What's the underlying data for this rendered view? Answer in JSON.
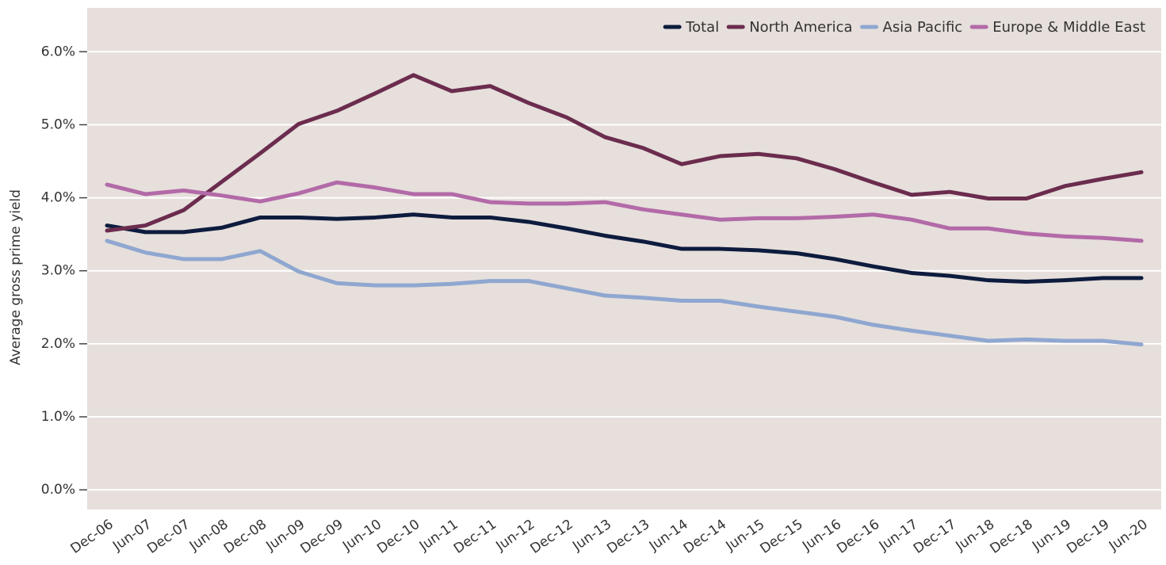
{
  "chart_data": {
    "type": "line",
    "y_label": "Average gross prime yield",
    "categories": [
      "Dec-06",
      "Jun-07",
      "Dec-07",
      "Jun-08",
      "Dec-08",
      "Jun-09",
      "Dec-09",
      "Jun-10",
      "Dec-10",
      "Jun-11",
      "Dec-11",
      "Jun-12",
      "Dec-12",
      "Jun-13",
      "Dec-13",
      "Jun-14",
      "Dec-14",
      "Jun-15",
      "Dec-15",
      "Jun-16",
      "Dec-16",
      "Jun-17",
      "Dec-17",
      "Jun-18",
      "Dec-18",
      "Jun-19",
      "Dec-19",
      "Jun-20"
    ],
    "series": [
      {
        "name": "Total",
        "color": "#0d1b3e",
        "values": [
          3.62,
          3.53,
          3.53,
          3.59,
          3.73,
          3.73,
          3.71,
          3.73,
          3.77,
          3.73,
          3.73,
          3.67,
          3.58,
          3.48,
          3.4,
          3.3,
          3.3,
          3.28,
          3.24,
          3.16,
          3.06,
          2.97,
          2.93,
          2.87,
          2.85,
          2.87,
          2.9,
          2.9
        ]
      },
      {
        "name": "North America",
        "color": "#6b2c4e",
        "values": [
          3.55,
          3.62,
          3.83,
          4.22,
          4.61,
          5.01,
          5.19,
          5.43,
          5.68,
          5.46,
          5.53,
          5.3,
          5.1,
          4.83,
          4.68,
          4.46,
          4.57,
          4.6,
          4.54,
          4.39,
          4.21,
          4.04,
          4.08,
          3.99,
          3.99,
          4.16,
          4.26,
          4.35
        ]
      },
      {
        "name": "Asia Pacific",
        "color": "#8fa7d0",
        "values": [
          3.41,
          3.25,
          3.16,
          3.16,
          3.27,
          2.99,
          2.83,
          2.8,
          2.8,
          2.82,
          2.86,
          2.86,
          2.76,
          2.66,
          2.63,
          2.59,
          2.59,
          2.51,
          2.44,
          2.37,
          2.26,
          2.18,
          2.11,
          2.04,
          2.06,
          2.04,
          2.04,
          1.99
        ]
      },
      {
        "name": "Europe & Middle East",
        "color": "#b36aa8",
        "values": [
          4.18,
          4.05,
          4.1,
          4.03,
          3.95,
          4.06,
          4.21,
          4.14,
          4.05,
          4.05,
          3.94,
          3.92,
          3.92,
          3.94,
          3.84,
          3.77,
          3.7,
          3.72,
          3.72,
          3.74,
          3.77,
          3.7,
          3.58,
          3.58,
          3.51,
          3.47,
          3.45,
          3.41
        ]
      }
    ],
    "ylim": [
      -0.27,
      6.6
    ],
    "yticks": [
      {
        "value": 0,
        "label": "0.0%"
      },
      {
        "value": 1,
        "label": "1.0%"
      },
      {
        "value": 2,
        "label": "2.0%"
      },
      {
        "value": 3,
        "label": "3.0%"
      },
      {
        "value": 4,
        "label": "4.0%"
      },
      {
        "value": 5,
        "label": "5.0%"
      },
      {
        "value": 6,
        "label": "6.0%"
      }
    ],
    "grid": true,
    "legend": "top-right"
  }
}
